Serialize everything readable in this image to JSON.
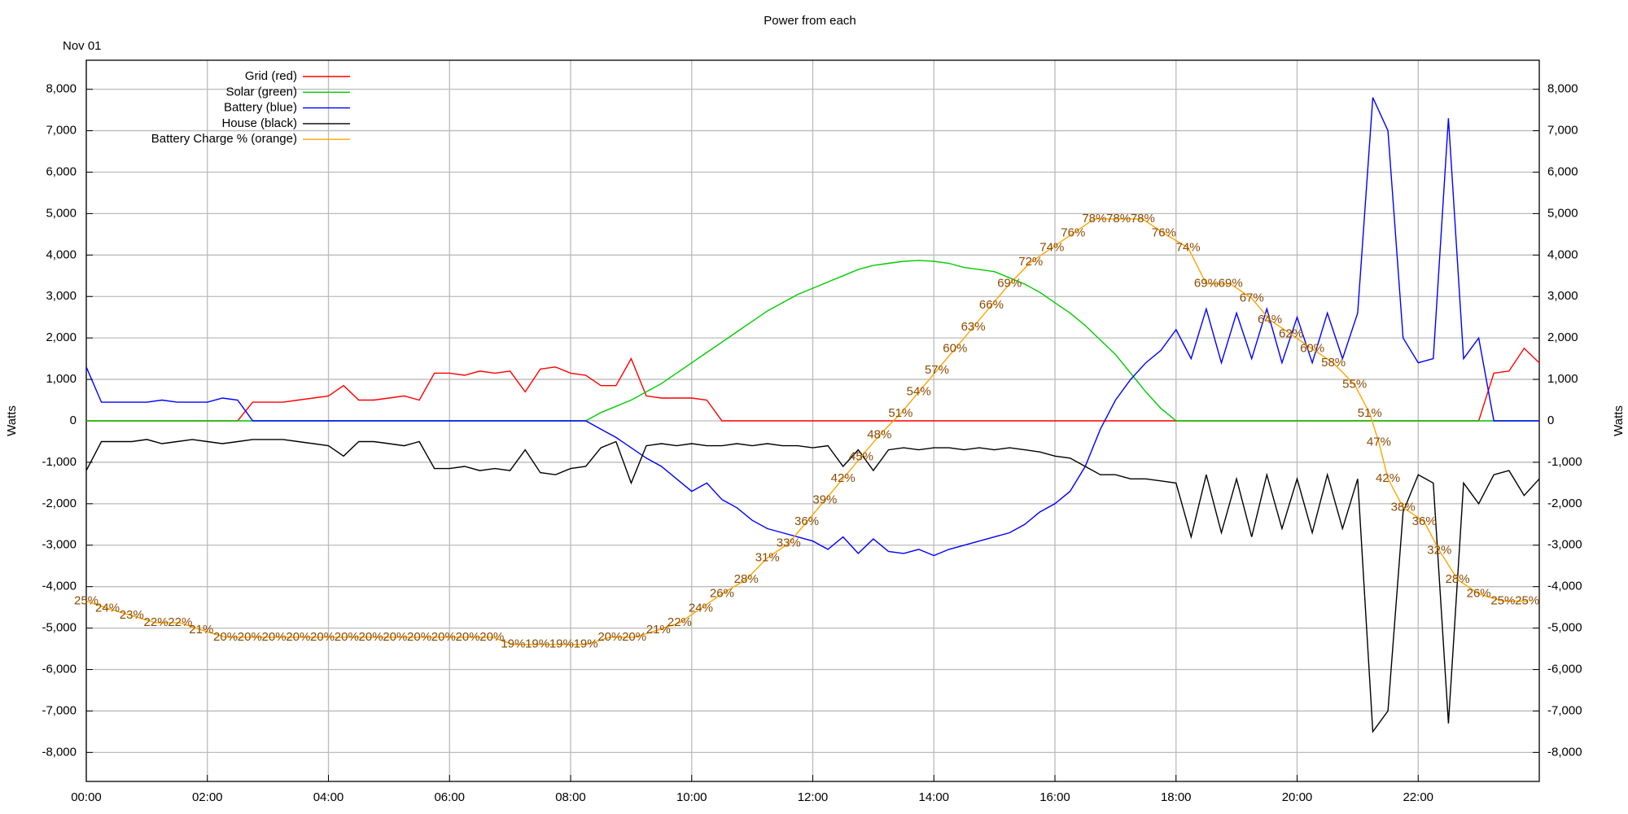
{
  "chart_data": {
    "type": "line",
    "title": "Power from each",
    "subtitle": "Nov 01",
    "ylabel": "Watts",
    "xlim": [
      0,
      24
    ],
    "ylim": [
      -8700,
      8700
    ],
    "y2lim": [
      0,
      100
    ],
    "grid": true,
    "legend": "upper-left",
    "xticks": [
      {
        "value": 0,
        "label": "00:00"
      },
      {
        "value": 2,
        "label": "02:00"
      },
      {
        "value": 4,
        "label": "04:00"
      },
      {
        "value": 6,
        "label": "06:00"
      },
      {
        "value": 8,
        "label": "08:00"
      },
      {
        "value": 10,
        "label": "10:00"
      },
      {
        "value": 12,
        "label": "12:00"
      },
      {
        "value": 14,
        "label": "14:00"
      },
      {
        "value": 16,
        "label": "16:00"
      },
      {
        "value": 18,
        "label": "18:00"
      },
      {
        "value": 20,
        "label": "20:00"
      },
      {
        "value": 22,
        "label": "22:00"
      }
    ],
    "yticks": [
      {
        "value": -8000,
        "label": "-8,000"
      },
      {
        "value": -7000,
        "label": "-7,000"
      },
      {
        "value": -6000,
        "label": "-6,000"
      },
      {
        "value": -5000,
        "label": "-5,000"
      },
      {
        "value": -4000,
        "label": "-4,000"
      },
      {
        "value": -3000,
        "label": "-3,000"
      },
      {
        "value": -2000,
        "label": "-2,000"
      },
      {
        "value": -1000,
        "label": "-1,000"
      },
      0,
      {
        "value": 1000,
        "label": "1,000"
      },
      {
        "value": 2000,
        "label": "2,000"
      },
      {
        "value": 3000,
        "label": "3,000"
      },
      {
        "value": 4000,
        "label": "4,000"
      },
      {
        "value": 5000,
        "label": "5,000"
      },
      {
        "value": 6000,
        "label": "6,000"
      },
      {
        "value": 7000,
        "label": "7,000"
      },
      {
        "value": 8000,
        "label": "8,000"
      }
    ],
    "x": [
      0,
      0.25,
      0.5,
      0.75,
      1,
      1.25,
      1.5,
      1.75,
      2,
      2.25,
      2.5,
      2.75,
      3,
      3.25,
      3.5,
      3.75,
      4,
      4.25,
      4.5,
      4.75,
      5,
      5.25,
      5.5,
      5.75,
      6,
      6.25,
      6.5,
      6.75,
      7,
      7.25,
      7.5,
      7.75,
      8,
      8.25,
      8.5,
      8.75,
      9,
      9.25,
      9.5,
      9.75,
      10,
      10.25,
      10.5,
      10.75,
      11,
      11.25,
      11.5,
      11.75,
      12,
      12.25,
      12.5,
      12.75,
      13,
      13.25,
      13.5,
      13.75,
      14,
      14.25,
      14.5,
      14.75,
      15,
      15.25,
      15.5,
      15.75,
      16,
      16.25,
      16.5,
      16.75,
      17,
      17.25,
      17.5,
      17.75,
      18,
      18.25,
      18.5,
      18.75,
      19,
      19.25,
      19.5,
      19.75,
      20,
      20.25,
      20.5,
      20.75,
      21,
      21.25,
      21.5,
      21.75,
      22,
      22.25,
      22.5,
      22.75,
      23,
      23.25,
      23.5,
      23.75,
      24
    ],
    "series": [
      {
        "name": "Grid (red)",
        "color": "#ff0000",
        "values": [
          0,
          0,
          0,
          0,
          0,
          0,
          0,
          0,
          0,
          0,
          0,
          450,
          450,
          450,
          500,
          550,
          600,
          850,
          500,
          500,
          550,
          600,
          500,
          1150,
          1150,
          1100,
          1200,
          1150,
          1200,
          700,
          1250,
          1300,
          1150,
          1100,
          850,
          850,
          1500,
          600,
          550,
          550,
          550,
          500,
          0,
          0,
          0,
          0,
          0,
          0,
          0,
          0,
          0,
          0,
          0,
          0,
          0,
          0,
          0,
          0,
          0,
          0,
          0,
          0,
          0,
          0,
          0,
          0,
          0,
          0,
          0,
          0,
          0,
          0,
          0,
          0,
          0,
          0,
          0,
          0,
          0,
          0,
          0,
          0,
          0,
          0,
          0,
          0,
          0,
          0,
          0,
          0,
          0,
          0,
          0,
          1150,
          1200,
          1750,
          1400
        ]
      },
      {
        "name": "Solar (green)",
        "color": "#00cc00",
        "values": [
          0,
          0,
          0,
          0,
          0,
          0,
          0,
          0,
          0,
          0,
          0,
          0,
          0,
          0,
          0,
          0,
          0,
          0,
          0,
          0,
          0,
          0,
          0,
          0,
          0,
          0,
          0,
          0,
          0,
          0,
          0,
          0,
          0,
          0,
          200,
          350,
          500,
          700,
          900,
          1150,
          1400,
          1650,
          1900,
          2150,
          2400,
          2650,
          2850,
          3050,
          3200,
          3350,
          3500,
          3650,
          3750,
          3800,
          3850,
          3870,
          3850,
          3800,
          3700,
          3650,
          3600,
          3450,
          3300,
          3100,
          2850,
          2600,
          2300,
          1950,
          1600,
          1150,
          700,
          300,
          0,
          0,
          0,
          0,
          0,
          0,
          0,
          0,
          0,
          0,
          0,
          0,
          0,
          0,
          0,
          0,
          0,
          0,
          0,
          0,
          0,
          0,
          0,
          0,
          0
        ]
      },
      {
        "name": "Battery (blue)",
        "color": "#0000ff",
        "values": [
          1300,
          450,
          450,
          450,
          450,
          500,
          450,
          450,
          450,
          550,
          500,
          0,
          0,
          0,
          0,
          0,
          0,
          0,
          0,
          0,
          0,
          0,
          0,
          0,
          0,
          0,
          0,
          0,
          0,
          0,
          0,
          0,
          0,
          0,
          -200,
          -400,
          -650,
          -900,
          -1100,
          -1400,
          -1700,
          -1500,
          -1900,
          -2100,
          -2400,
          -2600,
          -2700,
          -2800,
          -2900,
          -3100,
          -2800,
          -3200,
          -2850,
          -3150,
          -3200,
          -3100,
          -3250,
          -3100,
          -3000,
          -2900,
          -2800,
          -2700,
          -2500,
          -2200,
          -2000,
          -1700,
          -1100,
          -200,
          500,
          1000,
          1400,
          1700,
          2200,
          1500,
          2700,
          1400,
          2600,
          1500,
          2700,
          1400,
          2500,
          1400,
          2600,
          1500,
          2600,
          7800,
          7000,
          2000,
          1400,
          1500,
          7300,
          1500,
          2000,
          0,
          0,
          0,
          0
        ]
      },
      {
        "name": "House (black)",
        "color": "#000000",
        "values": [
          -1200,
          -500,
          -500,
          -500,
          -450,
          -550,
          -500,
          -450,
          -500,
          -550,
          -500,
          -450,
          -450,
          -450,
          -500,
          -550,
          -600,
          -850,
          -500,
          -500,
          -550,
          -600,
          -500,
          -1150,
          -1150,
          -1100,
          -1200,
          -1150,
          -1200,
          -700,
          -1250,
          -1300,
          -1150,
          -1100,
          -650,
          -500,
          -1500,
          -600,
          -550,
          -600,
          -550,
          -600,
          -600,
          -550,
          -600,
          -550,
          -600,
          -600,
          -650,
          -600,
          -1100,
          -700,
          -1200,
          -700,
          -650,
          -700,
          -650,
          -650,
          -700,
          -650,
          -700,
          -650,
          -700,
          -750,
          -850,
          -900,
          -1100,
          -1300,
          -1300,
          -1400,
          -1400,
          -1450,
          -1500,
          -2800,
          -1300,
          -2700,
          -1400,
          -2800,
          -1300,
          -2600,
          -1400,
          -2700,
          -1300,
          -2600,
          -1400,
          -7500,
          -7000,
          -2200,
          -1300,
          -1500,
          -7300,
          -1500,
          -2000,
          -1300,
          -1200,
          -1800,
          -1400
        ]
      },
      {
        "name": "Battery Charge % (orange)",
        "color": "#ffa500",
        "axis": "y2",
        "x": [
          0,
          0.35,
          0.75,
          1.15,
          1.55,
          1.9,
          2.3,
          2.7,
          3.1,
          3.5,
          3.9,
          4.3,
          4.7,
          5.1,
          5.5,
          5.9,
          6.3,
          6.7,
          7.05,
          7.45,
          7.85,
          8.25,
          8.65,
          9.05,
          9.45,
          9.8,
          10.15,
          10.5,
          10.9,
          11.25,
          11.6,
          11.9,
          12.2,
          12.5,
          12.8,
          13.1,
          13.45,
          13.75,
          14.05,
          14.35,
          14.65,
          14.95,
          15.25,
          15.6,
          15.95,
          16.3,
          16.65,
          17.05,
          17.45,
          17.8,
          18.2,
          18.5,
          18.9,
          19.25,
          19.55,
          19.9,
          20.25,
          20.6,
          20.95,
          21.2,
          21.35,
          21.5,
          21.75,
          22.1,
          22.35,
          22.65,
          23,
          23.4,
          23.8
        ],
        "values": [
          25,
          24,
          23,
          22,
          22,
          21,
          20,
          20,
          20,
          20,
          20,
          20,
          20,
          20,
          20,
          20,
          20,
          20,
          19,
          19,
          19,
          19,
          20,
          20,
          21,
          22,
          24,
          26,
          28,
          31,
          33,
          36,
          39,
          42,
          45,
          48,
          51,
          54,
          57,
          60,
          63,
          66,
          69,
          72,
          74,
          76,
          78,
          78,
          78,
          76,
          74,
          69,
          69,
          67,
          64,
          62,
          60,
          58,
          55,
          51,
          47,
          42,
          38,
          36,
          32,
          28,
          26,
          25,
          25
        ],
        "value_labels": [
          "25%",
          "24%",
          "23%",
          "22%",
          "22%",
          "21%",
          "20%",
          "20%",
          "20%",
          "20%",
          "20%",
          "20%",
          "20%",
          "20%",
          "20%",
          "20%",
          "20%",
          "20%",
          "19%",
          "19%",
          "19%",
          "19%",
          "20%",
          "20%",
          "21%",
          "22%",
          "24%",
          "26%",
          "28%",
          "31%",
          "33%",
          "36%",
          "39%",
          "42%",
          "45%",
          "48%",
          "51%",
          "54%",
          "57%",
          "60%",
          "63%",
          "66%",
          "69%",
          "72%",
          "74%",
          "76%",
          "78%",
          "78%",
          "78%",
          "76%",
          "74%",
          "69%",
          "69%",
          "67%",
          "64%",
          "62%",
          "60%",
          "58%",
          "55%",
          "51%",
          "47%",
          "42%",
          "38%",
          "36%",
          "32%",
          "28%",
          "26%",
          "25%",
          "25%"
        ],
        "label_color": "#8b4a00"
      }
    ]
  }
}
